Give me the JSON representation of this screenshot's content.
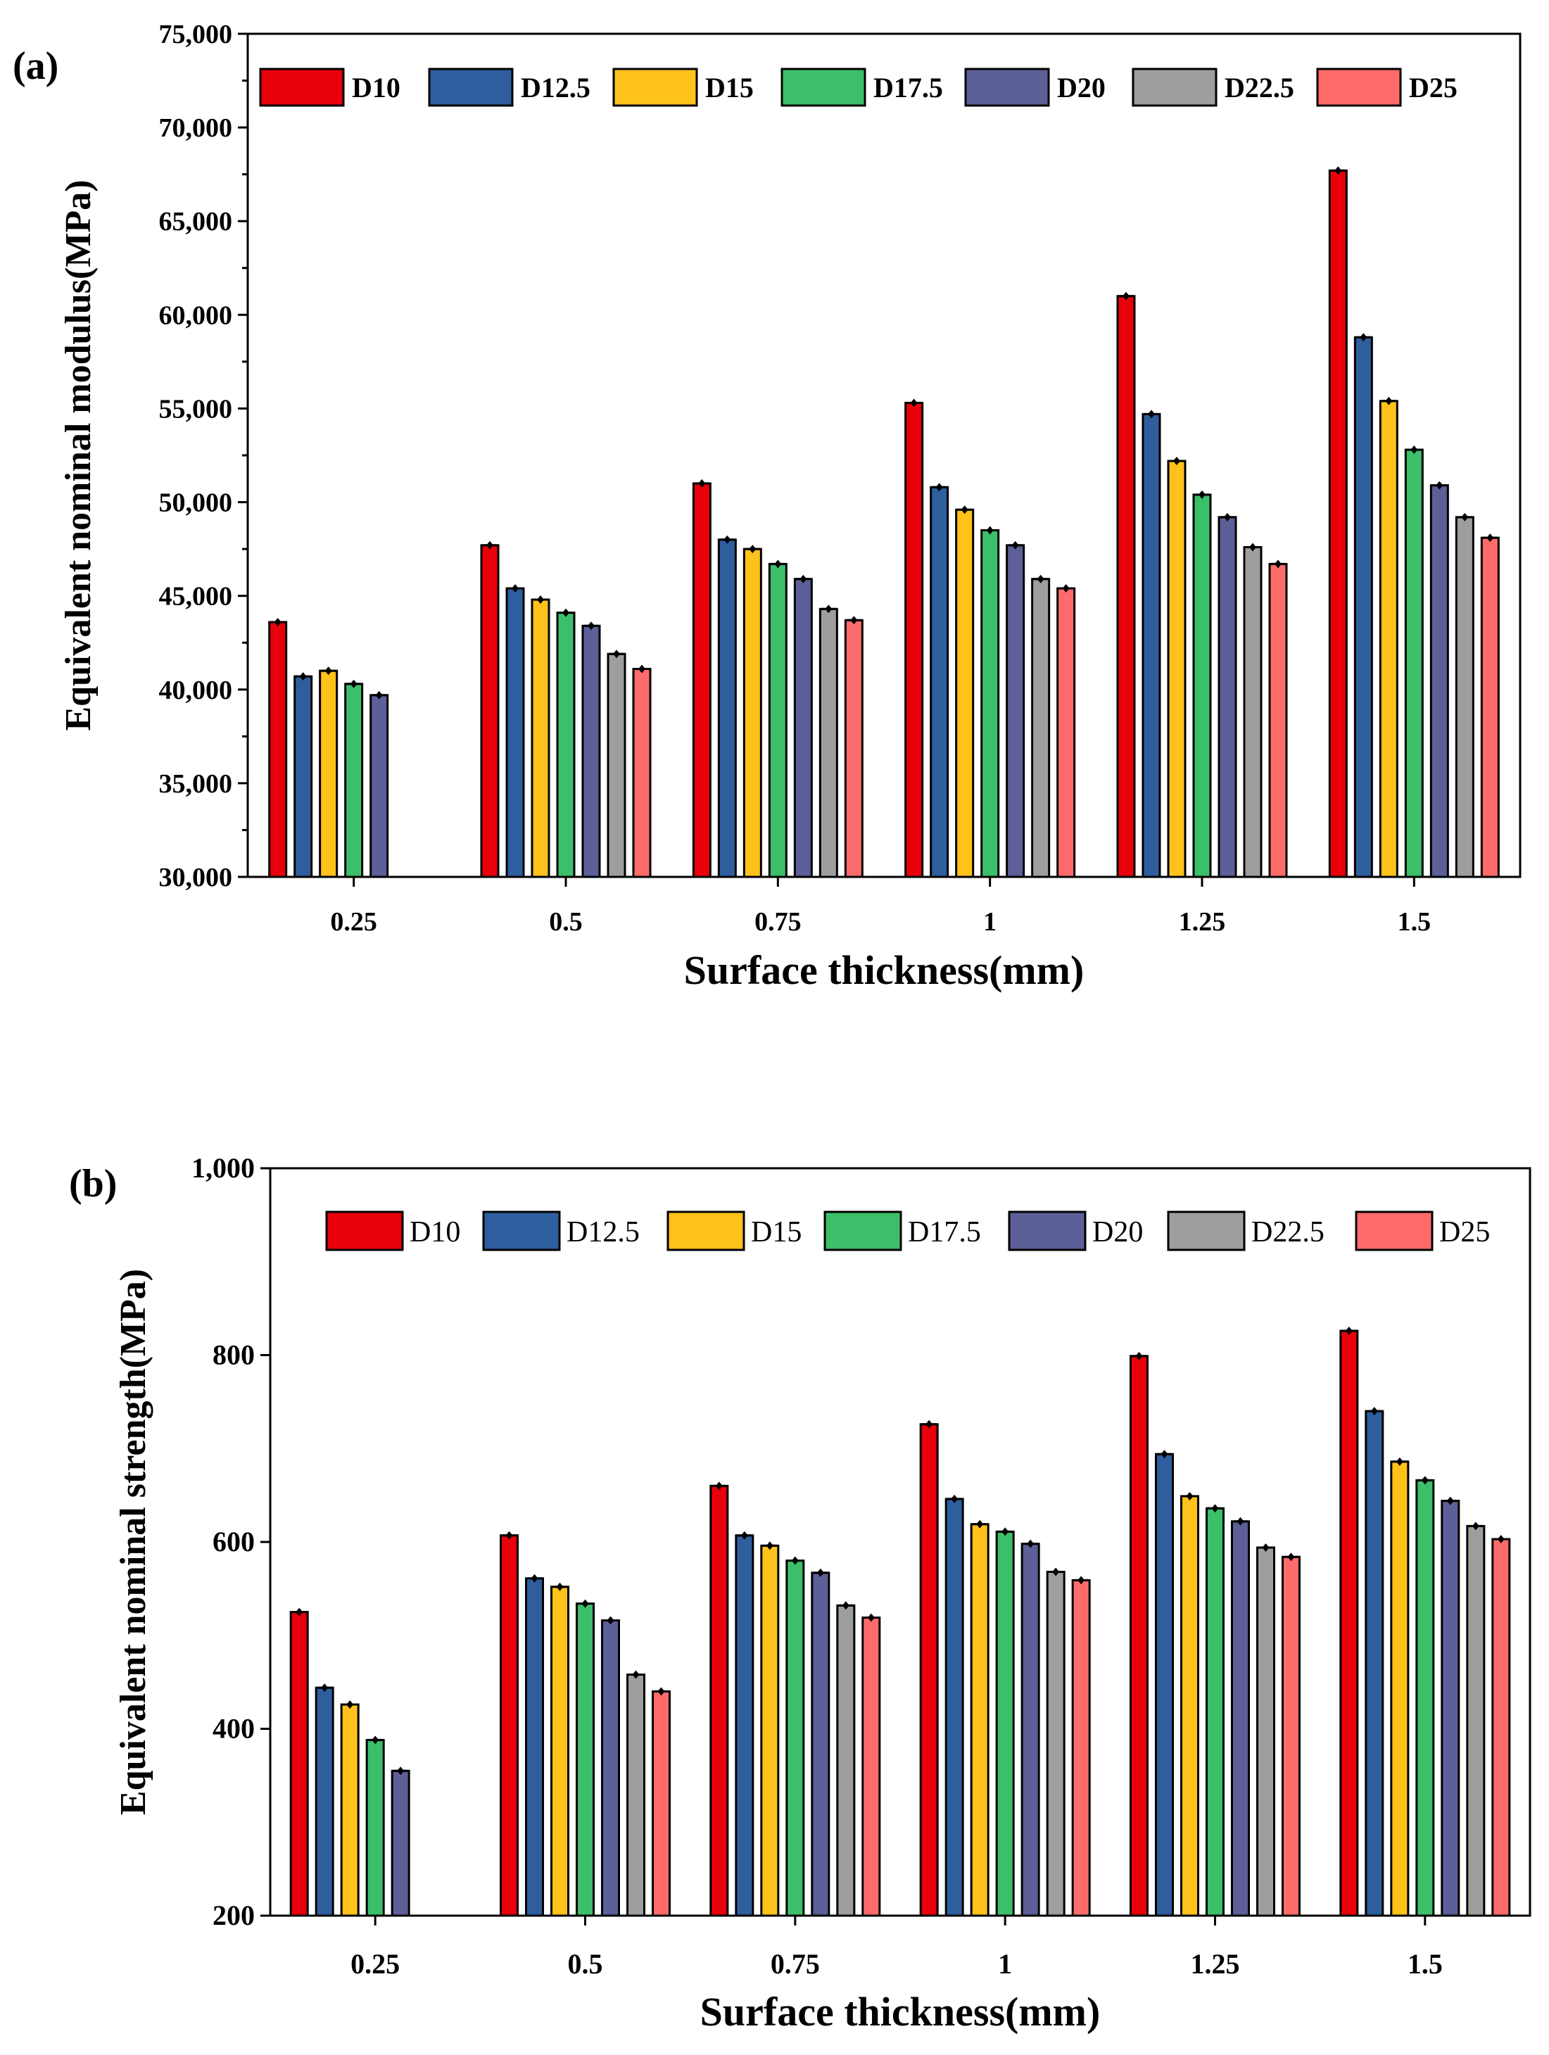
{
  "chart_data": [
    {
      "panel_label": "(a)",
      "type": "bar",
      "xlabel": "Surface thickness(mm)",
      "ylabel": "Equivalent nominal modulus(MPa)",
      "ylim": [
        30000,
        75000
      ],
      "yticks": [
        30000,
        35000,
        40000,
        45000,
        50000,
        55000,
        60000,
        65000,
        70000,
        75000
      ],
      "ytick_labels": [
        "30,000",
        "35,000",
        "40,000",
        "45,000",
        "50,000",
        "55,000",
        "60,000",
        "65,000",
        "70,000",
        "75,000"
      ],
      "categories": [
        "0.25",
        "0.5",
        "0.75",
        "1",
        "1.25",
        "1.5"
      ],
      "legend_position": "top",
      "series": [
        {
          "name": "D10",
          "color": "#e8000b",
          "values": [
            43600,
            47700,
            51000,
            55300,
            61000,
            67700
          ]
        },
        {
          "name": "D12.5",
          "color": "#2e5e9e",
          "values": [
            40700,
            45400,
            48000,
            50800,
            54700,
            58800
          ]
        },
        {
          "name": "D15",
          "color": "#ffc21a",
          "values": [
            41000,
            44800,
            47500,
            49600,
            52200,
            55400
          ]
        },
        {
          "name": "D17.5",
          "color": "#3cbf6a",
          "values": [
            40300,
            44100,
            46700,
            48500,
            50400,
            52800
          ]
        },
        {
          "name": "D20",
          "color": "#5d5f98",
          "values": [
            39700,
            43400,
            45900,
            47700,
            49200,
            50900
          ]
        },
        {
          "name": "D22.5",
          "color": "#9e9e9e",
          "values": [
            null,
            41900,
            44300,
            45900,
            47600,
            49200
          ]
        },
        {
          "name": "D25",
          "color": "#ff6b6b",
          "values": [
            null,
            41100,
            43700,
            45400,
            46700,
            48100
          ]
        }
      ]
    },
    {
      "panel_label": "(b)",
      "type": "bar",
      "xlabel": "Surface thickness(mm)",
      "ylabel": "Equivalent nominal strength(MPa)",
      "ylim": [
        200,
        1000
      ],
      "yticks": [
        200,
        400,
        600,
        800,
        1000
      ],
      "ytick_labels": [
        "200",
        "400",
        "600",
        "800",
        "1,000"
      ],
      "categories": [
        "0.25",
        "0.5",
        "0.75",
        "1",
        "1.25",
        "1.5"
      ],
      "legend_position": "top",
      "series": [
        {
          "name": "D10",
          "color": "#e8000b",
          "values": [
            525,
            607,
            660,
            726,
            799,
            826
          ]
        },
        {
          "name": "D12.5",
          "color": "#2e5e9e",
          "values": [
            444,
            561,
            607,
            646,
            694,
            740
          ]
        },
        {
          "name": "D15",
          "color": "#ffc21a",
          "values": [
            426,
            552,
            596,
            619,
            649,
            686
          ]
        },
        {
          "name": "D17.5",
          "color": "#3cbf6a",
          "values": [
            388,
            534,
            580,
            611,
            636,
            666
          ]
        },
        {
          "name": "D20",
          "color": "#5d5f98",
          "values": [
            355,
            516,
            567,
            598,
            622,
            644
          ]
        },
        {
          "name": "D22.5",
          "color": "#9e9e9e",
          "values": [
            null,
            458,
            532,
            568,
            594,
            617
          ]
        },
        {
          "name": "D25",
          "color": "#ff6b6b",
          "values": [
            null,
            440,
            519,
            559,
            584,
            603
          ]
        }
      ]
    }
  ]
}
